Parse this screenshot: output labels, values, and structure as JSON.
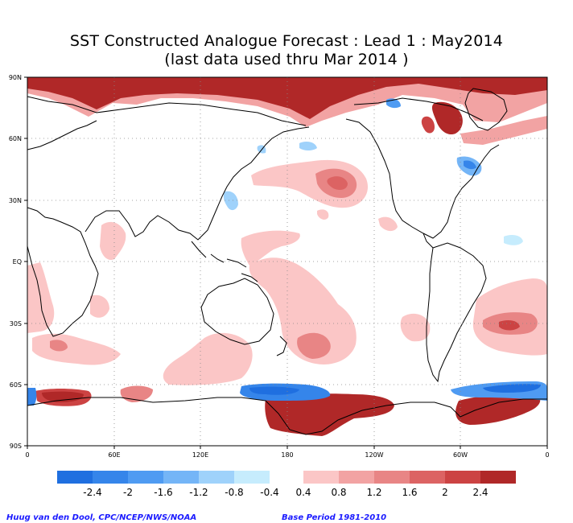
{
  "title_line1": "SST Constructed Analogue Forecast : Lead 1 : May2014",
  "title_line2": "(last data used thru Mar 2014 )",
  "map": {
    "lat_labels": [
      "90N",
      "60N",
      "30N",
      "EQ",
      "30S",
      "60S",
      "90S"
    ],
    "lon_labels": [
      "0",
      "60E",
      "120E",
      "180",
      "120W",
      "60W",
      "0"
    ],
    "grid": "dotted",
    "projection": "equirectangular, 0-360E"
  },
  "colorbar": {
    "negative": {
      "colors": [
        "#1f6fe0",
        "#3585ea",
        "#4f9bf2",
        "#74b5f7",
        "#9fd2fb",
        "#c6ecfd"
      ],
      "labels": [
        "-2.4",
        "-2",
        "-1.6",
        "-1.2",
        "-0.8",
        "-0.4"
      ]
    },
    "positive": {
      "colors": [
        "#fbc6c6",
        "#f2a3a3",
        "#e88585",
        "#dc6363",
        "#cc4343",
        "#b02828"
      ],
      "labels": [
        "0.4",
        "0.8",
        "1.2",
        "1.6",
        "2",
        "2.4"
      ]
    }
  },
  "credits": {
    "left": "Huug van den Dool, CPC/NCEP/NWS/NOAA",
    "right": "Base Period 1981-2010"
  }
}
